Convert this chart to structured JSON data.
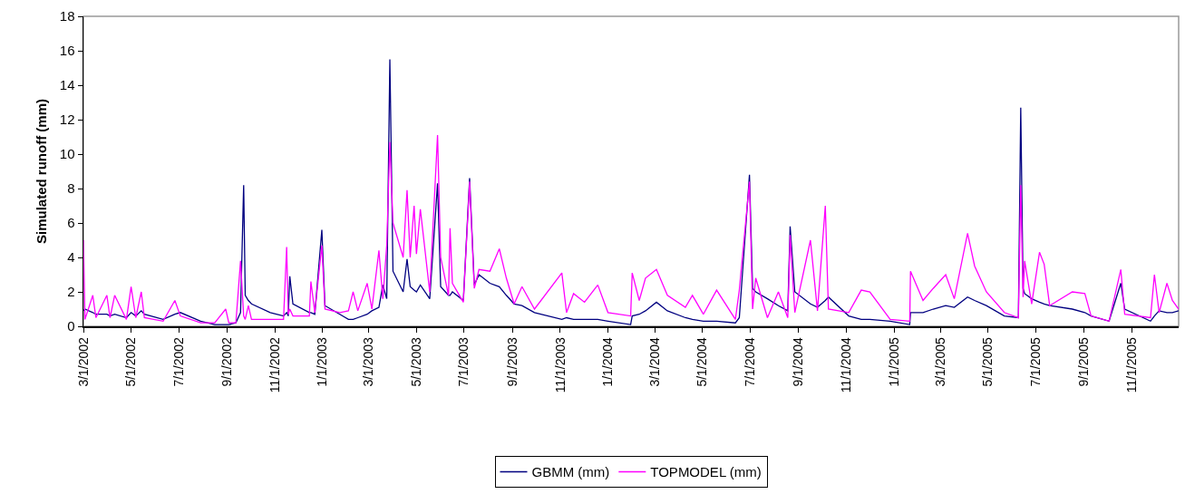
{
  "chart_data": {
    "type": "line",
    "ylabel": "Simulated runoff (mm)",
    "x": [
      "2002-03-01",
      "2002-03-03",
      "2002-03-13",
      "2002-03-17",
      "2002-03-31",
      "2002-04-04",
      "2002-04-10",
      "2002-04-25",
      "2002-05-01",
      "2002-05-07",
      "2002-05-14",
      "2002-05-18",
      "2002-06-11",
      "2002-06-26",
      "2002-07-03",
      "2002-07-29",
      "2002-08-16",
      "2002-08-30",
      "2002-09-03",
      "2002-09-12",
      "2002-09-18",
      "2002-09-22",
      "2002-09-24",
      "2002-09-28",
      "2002-10-02",
      "2002-10-26",
      "2002-11-12",
      "2002-11-16",
      "2002-11-18",
      "2002-11-20",
      "2002-11-24",
      "2002-12-15",
      "2002-12-17",
      "2002-12-22",
      "2002-12-31",
      "2003-01-04",
      "2003-01-23",
      "2003-02-03",
      "2003-02-09",
      "2003-02-15",
      "2003-02-27",
      "2003-03-05",
      "2003-03-14",
      "2003-03-19",
      "2003-03-24",
      "2003-03-28",
      "2003-04-01",
      "2003-04-14",
      "2003-04-19",
      "2003-04-23",
      "2003-04-28",
      "2003-05-01",
      "2003-05-06",
      "2003-05-18",
      "2003-05-28",
      "2003-06-01",
      "2003-06-11",
      "2003-06-13",
      "2003-06-16",
      "2003-06-30",
      "2003-07-08",
      "2003-07-14",
      "2003-07-20",
      "2003-08-03",
      "2003-08-15",
      "2003-08-24",
      "2003-09-03",
      "2003-09-13",
      "2003-09-29",
      "2003-11-03",
      "2003-11-09",
      "2003-11-18",
      "2003-12-02",
      "2003-12-19",
      "2004-01-01",
      "2004-01-30",
      "2004-02-01",
      "2004-02-10",
      "2004-02-18",
      "2004-03-03",
      "2004-03-17",
      "2004-04-09",
      "2004-04-18",
      "2004-05-02",
      "2004-05-19",
      "2004-06-12",
      "2004-06-17",
      "2004-06-30",
      "2004-07-04",
      "2004-07-08",
      "2004-07-23",
      "2004-08-06",
      "2004-08-18",
      "2004-08-21",
      "2004-08-27",
      "2004-09-16",
      "2004-09-25",
      "2004-10-05",
      "2004-10-09",
      "2004-11-04",
      "2004-11-20",
      "2004-12-01",
      "2004-12-27",
      "2005-01-21",
      "2005-01-22",
      "2005-02-07",
      "2005-02-20",
      "2005-03-08",
      "2005-03-19",
      "2005-04-05",
      "2005-04-14",
      "2005-04-29",
      "2005-05-22",
      "2005-06-09",
      "2005-06-12",
      "2005-06-15",
      "2005-06-17",
      "2005-06-26",
      "2005-07-06",
      "2005-07-12",
      "2005-07-19",
      "2005-08-17",
      "2005-09-02",
      "2005-09-10",
      "2005-10-03",
      "2005-10-18",
      "2005-10-23",
      "2005-11-25",
      "2005-11-30",
      "2005-12-06",
      "2005-12-16",
      "2005-12-23",
      "2005-12-31"
    ],
    "series": [
      {
        "name": "GBMM (mm)",
        "color": "#000080",
        "values": [
          0.9,
          1.0,
          0.8,
          0.7,
          0.7,
          0.6,
          0.7,
          0.5,
          0.8,
          0.6,
          0.9,
          0.7,
          0.4,
          0.7,
          0.8,
          0.3,
          0.1,
          0.1,
          0.1,
          0.2,
          0.8,
          8.2,
          1.8,
          1.5,
          1.3,
          0.8,
          0.6,
          0.8,
          0.6,
          2.9,
          1.3,
          0.8,
          0.8,
          0.7,
          5.6,
          1.2,
          0.7,
          0.4,
          0.4,
          0.5,
          0.7,
          0.9,
          1.1,
          2.4,
          1.6,
          15.5,
          3.2,
          2.0,
          3.9,
          2.3,
          2.1,
          2.0,
          2.4,
          1.6,
          8.3,
          2.3,
          1.8,
          1.8,
          2.0,
          1.5,
          8.6,
          2.4,
          3.0,
          2.5,
          2.3,
          1.8,
          1.3,
          1.2,
          0.8,
          0.4,
          0.5,
          0.4,
          0.4,
          0.4,
          0.3,
          0.1,
          0.6,
          0.7,
          0.9,
          1.4,
          0.9,
          0.5,
          0.4,
          0.3,
          0.3,
          0.2,
          0.5,
          8.8,
          2.2,
          2.0,
          1.6,
          1.2,
          0.9,
          5.8,
          2.0,
          1.3,
          1.1,
          1.5,
          1.7,
          0.6,
          0.4,
          0.4,
          0.3,
          0.1,
          0.8,
          0.8,
          1.0,
          1.2,
          1.1,
          1.7,
          1.5,
          1.2,
          0.6,
          0.5,
          12.7,
          2.2,
          1.9,
          1.6,
          1.4,
          1.3,
          1.2,
          1.0,
          0.8,
          0.6,
          0.3,
          2.5,
          1.0,
          0.3,
          0.6,
          0.9,
          0.8,
          0.8,
          0.9
        ]
      },
      {
        "name": "TOPMODEL (mm)",
        "color": "#ff00ff",
        "values": [
          5.0,
          0.4,
          1.8,
          0.5,
          1.8,
          0.5,
          1.8,
          0.4,
          2.3,
          0.5,
          2.0,
          0.5,
          0.3,
          1.5,
          0.6,
          0.2,
          0.2,
          1.0,
          0.2,
          0.2,
          3.8,
          0.6,
          0.4,
          1.2,
          0.4,
          0.4,
          0.4,
          4.6,
          0.7,
          1.0,
          0.6,
          0.6,
          2.6,
          0.8,
          4.7,
          1.0,
          0.8,
          0.9,
          2.0,
          0.9,
          2.5,
          1.0,
          4.4,
          1.6,
          4.7,
          10.7,
          6.0,
          4.0,
          7.9,
          4.0,
          7.0,
          4.2,
          6.8,
          2.0,
          11.1,
          4.0,
          1.8,
          5.7,
          2.5,
          1.4,
          8.4,
          2.2,
          3.3,
          3.2,
          4.5,
          2.8,
          1.3,
          2.3,
          1.0,
          3.1,
          0.8,
          1.9,
          1.4,
          2.4,
          0.8,
          0.6,
          3.1,
          1.5,
          2.8,
          3.3,
          1.8,
          1.1,
          1.8,
          0.7,
          2.1,
          0.4,
          2.1,
          8.4,
          1.0,
          2.8,
          0.5,
          2.0,
          0.5,
          5.3,
          0.8,
          5.0,
          0.9,
          7.0,
          1.0,
          0.8,
          2.1,
          2.0,
          0.4,
          0.3,
          3.2,
          1.5,
          2.2,
          3.0,
          1.6,
          5.4,
          3.5,
          2.0,
          0.8,
          0.5,
          8.2,
          1.7,
          3.8,
          1.3,
          4.3,
          3.6,
          1.2,
          2.0,
          1.9,
          0.6,
          0.3,
          3.3,
          0.7,
          0.5,
          3.0,
          0.8,
          2.5,
          1.5,
          1.0
        ]
      }
    ],
    "xlim": [
      "2002-03-01",
      "2005-12-31"
    ],
    "xticks": [
      {
        "value": "2002-03-01",
        "label": "3/1/2002"
      },
      {
        "value": "2002-05-01",
        "label": "5/1/2002"
      },
      {
        "value": "2002-07-01",
        "label": "7/1/2002"
      },
      {
        "value": "2002-09-01",
        "label": "9/1/2002"
      },
      {
        "value": "2002-11-01",
        "label": "11/1/2002"
      },
      {
        "value": "2003-01-01",
        "label": "1/1/2003"
      },
      {
        "value": "2003-03-01",
        "label": "3/1/2003"
      },
      {
        "value": "2003-05-01",
        "label": "5/1/2003"
      },
      {
        "value": "2003-07-01",
        "label": "7/1/2003"
      },
      {
        "value": "2003-09-01",
        "label": "9/1/2003"
      },
      {
        "value": "2003-11-01",
        "label": "11/1/2003"
      },
      {
        "value": "2004-01-01",
        "label": "1/1/2004"
      },
      {
        "value": "2004-03-01",
        "label": "3/1/2004"
      },
      {
        "value": "2004-05-01",
        "label": "5/1/2004"
      },
      {
        "value": "2004-07-01",
        "label": "7/1/2004"
      },
      {
        "value": "2004-09-01",
        "label": "9/1/2004"
      },
      {
        "value": "2004-11-01",
        "label": "11/1/2004"
      },
      {
        "value": "2005-01-01",
        "label": "1/1/2005"
      },
      {
        "value": "2005-03-01",
        "label": "3/1/2005"
      },
      {
        "value": "2005-05-01",
        "label": "5/1/2005"
      },
      {
        "value": "2005-07-01",
        "label": "7/1/2005"
      },
      {
        "value": "2005-09-01",
        "label": "9/1/2005"
      },
      {
        "value": "2005-11-01",
        "label": "11/1/2005"
      }
    ],
    "ylim": [
      0,
      18
    ],
    "yticks": [
      0,
      2,
      4,
      6,
      8,
      10,
      12,
      14,
      16,
      18
    ],
    "grid": false,
    "legend": "bottom",
    "marker": "none",
    "line_style": "solid"
  }
}
